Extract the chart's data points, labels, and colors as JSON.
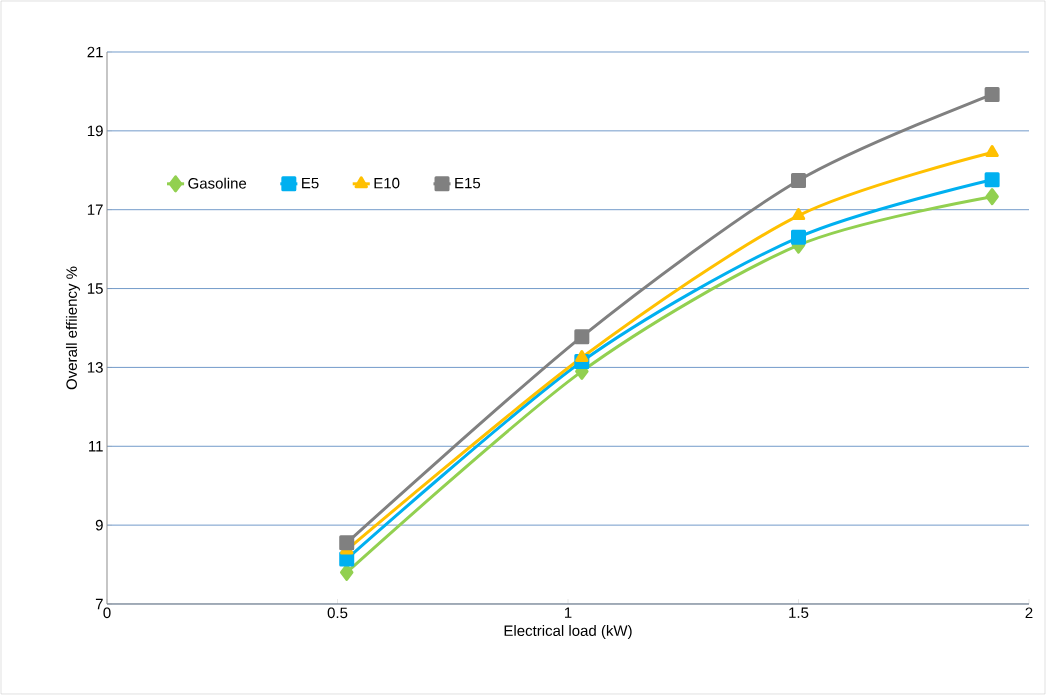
{
  "chart_data": {
    "type": "line",
    "xlabel": "Electrical load (kW)",
    "ylabel": "Overall effiiency %",
    "xlim": [
      0,
      2
    ],
    "xticks": [
      0,
      0.5,
      1,
      1.5,
      2
    ],
    "ylim": [
      7,
      21
    ],
    "yticks": [
      7,
      9,
      11,
      13,
      15,
      17,
      19,
      21
    ],
    "grid": "y",
    "legend": "top left",
    "line_style": "solid",
    "series": [
      {
        "name": "Gasoline",
        "color": "#92d050",
        "marker": "diamond",
        "x": [
          0.52,
          1.03,
          1.5,
          1.92
        ],
        "values": [
          7.8,
          12.9,
          16.1,
          17.33
        ]
      },
      {
        "name": "E5",
        "color": "#00b0f0",
        "marker": "square",
        "x": [
          0.52,
          1.03,
          1.5,
          1.92
        ],
        "values": [
          8.14,
          13.15,
          16.3,
          17.76
        ]
      },
      {
        "name": "E10",
        "color": "#ffc000",
        "marker": "triangle",
        "x": [
          0.52,
          1.03,
          1.5,
          1.92
        ],
        "values": [
          8.37,
          13.25,
          16.85,
          18.45
        ]
      },
      {
        "name": "E15",
        "color": "#808080",
        "marker": "square",
        "x": [
          0.52,
          1.03,
          1.5,
          1.92
        ],
        "values": [
          8.55,
          13.78,
          17.74,
          19.92
        ]
      }
    ]
  }
}
